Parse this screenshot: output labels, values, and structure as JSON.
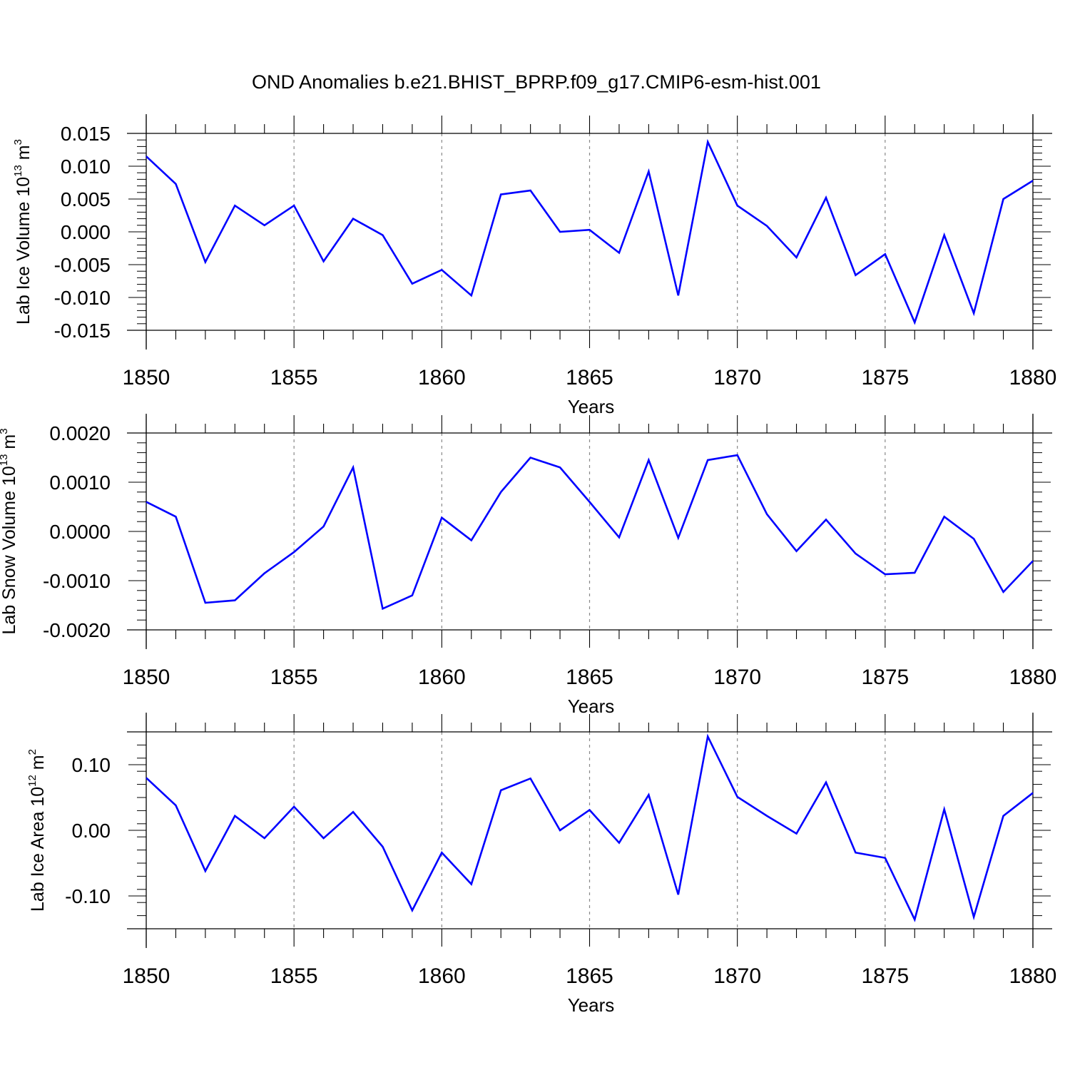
{
  "title": "OND Anomalies b.e21.BHIST_BPRP.f09_g17.CMIP6-esm-hist.001",
  "colors": {
    "line": "#0000ff",
    "axis": "#000000",
    "grid": "#888888",
    "background": "#ffffff"
  },
  "chart_data": [
    {
      "type": "line",
      "title": "OND Anomalies b.e21.BHIST_BPRP.f09_g17.CMIP6-esm-hist.001",
      "xlabel": "Years",
      "ylabel": {
        "text": "Lab Ice Volume 10",
        "sup": "13",
        "unit": " m",
        "unit_sup": "3"
      },
      "x": [
        1850,
        1851,
        1852,
        1853,
        1854,
        1855,
        1856,
        1857,
        1858,
        1859,
        1860,
        1861,
        1862,
        1863,
        1864,
        1865,
        1866,
        1867,
        1868,
        1869,
        1870,
        1871,
        1872,
        1873,
        1874,
        1875,
        1876,
        1877,
        1878,
        1879,
        1880
      ],
      "series": [
        {
          "name": "Lab Ice Volume",
          "values": [
            0.0115,
            0.0073,
            -0.0046,
            0.004,
            0.001,
            0.004,
            -0.0045,
            0.002,
            -0.0005,
            -0.0079,
            -0.0058,
            -0.0097,
            0.0057,
            0.0063,
            0.0,
            0.0003,
            -0.0032,
            0.0092,
            -0.0097,
            0.0137,
            0.004,
            0.0009,
            -0.0039,
            0.0052,
            -0.0066,
            -0.0034,
            -0.0138,
            -0.0005,
            -0.0124,
            0.005,
            0.0078
          ]
        }
      ],
      "xlim": [
        1850,
        1880
      ],
      "ylim": [
        -0.015,
        0.015
      ],
      "xticks": [
        "1850",
        "1855",
        "1860",
        "1865",
        "1870",
        "1875",
        "1880"
      ],
      "yticks": [
        "0.015",
        "0.010",
        "0.005",
        "0.000",
        "-0.005",
        "-0.010",
        "-0.015"
      ],
      "ytick_values": [
        0.015,
        0.01,
        0.005,
        0.0,
        -0.005,
        -0.01,
        -0.015
      ],
      "grid": "vertical dashed at major x ticks"
    },
    {
      "type": "line",
      "xlabel": "Years",
      "ylabel": {
        "text": "Lab Snow Volume 10",
        "sup": "13",
        "unit": " m",
        "unit_sup": "3"
      },
      "x": [
        1850,
        1851,
        1852,
        1853,
        1854,
        1855,
        1856,
        1857,
        1858,
        1859,
        1860,
        1861,
        1862,
        1863,
        1864,
        1865,
        1866,
        1867,
        1868,
        1869,
        1870,
        1871,
        1872,
        1873,
        1874,
        1875,
        1876,
        1877,
        1878,
        1879,
        1880
      ],
      "series": [
        {
          "name": "Lab Snow Volume",
          "values": [
            0.0006,
            0.0003,
            -0.00145,
            -0.0014,
            -0.00085,
            -0.00042,
            0.0001,
            0.0013,
            -0.00157,
            -0.0013,
            0.00028,
            -0.00018,
            0.0008,
            0.0015,
            0.0013,
            0.0006,
            -0.00012,
            0.00145,
            -0.00013,
            0.00145,
            0.00155,
            0.00035,
            -0.0004,
            0.00024,
            -0.00045,
            -0.00087,
            -0.00084,
            0.0003,
            -0.00015,
            -0.00123,
            -0.0006
          ]
        }
      ],
      "xlim": [
        1850,
        1880
      ],
      "ylim": [
        -0.002,
        0.002
      ],
      "xticks": [
        "1850",
        "1855",
        "1860",
        "1865",
        "1870",
        "1875",
        "1880"
      ],
      "yticks": [
        "0.0020",
        "0.0010",
        "0.0000",
        "-0.0010",
        "-0.0020"
      ],
      "ytick_values": [
        0.002,
        0.001,
        0.0,
        -0.001,
        -0.002
      ],
      "grid": "vertical dashed at major x ticks"
    },
    {
      "type": "line",
      "xlabel": "Years",
      "ylabel": {
        "text": "Lab Ice Area 10",
        "sup": "12",
        "unit": " m",
        "unit_sup": "2"
      },
      "x": [
        1850,
        1851,
        1852,
        1853,
        1854,
        1855,
        1856,
        1857,
        1858,
        1859,
        1860,
        1861,
        1862,
        1863,
        1864,
        1865,
        1866,
        1867,
        1868,
        1869,
        1870,
        1871,
        1872,
        1873,
        1874,
        1875,
        1876,
        1877,
        1878,
        1879,
        1880
      ],
      "series": [
        {
          "name": "Lab Ice Area",
          "values": [
            0.08,
            0.038,
            -0.062,
            0.022,
            -0.012,
            0.036,
            -0.012,
            0.028,
            -0.025,
            -0.122,
            -0.034,
            -0.082,
            0.061,
            0.079,
            0.0,
            0.031,
            -0.019,
            0.054,
            -0.098,
            0.143,
            0.051,
            0.022,
            -0.005,
            0.073,
            -0.034,
            -0.042,
            -0.136,
            0.032,
            -0.132,
            0.022,
            0.057
          ]
        }
      ],
      "xlim": [
        1850,
        1880
      ],
      "ylim": [
        -0.15,
        0.15
      ],
      "xticks": [
        "1850",
        "1855",
        "1860",
        "1865",
        "1870",
        "1875",
        "1880"
      ],
      "yticks": [
        "0.10",
        "0.00",
        "-0.10"
      ],
      "ytick_values": [
        0.1,
        0.0,
        -0.1
      ],
      "grid": "vertical dashed at major x ticks"
    }
  ]
}
